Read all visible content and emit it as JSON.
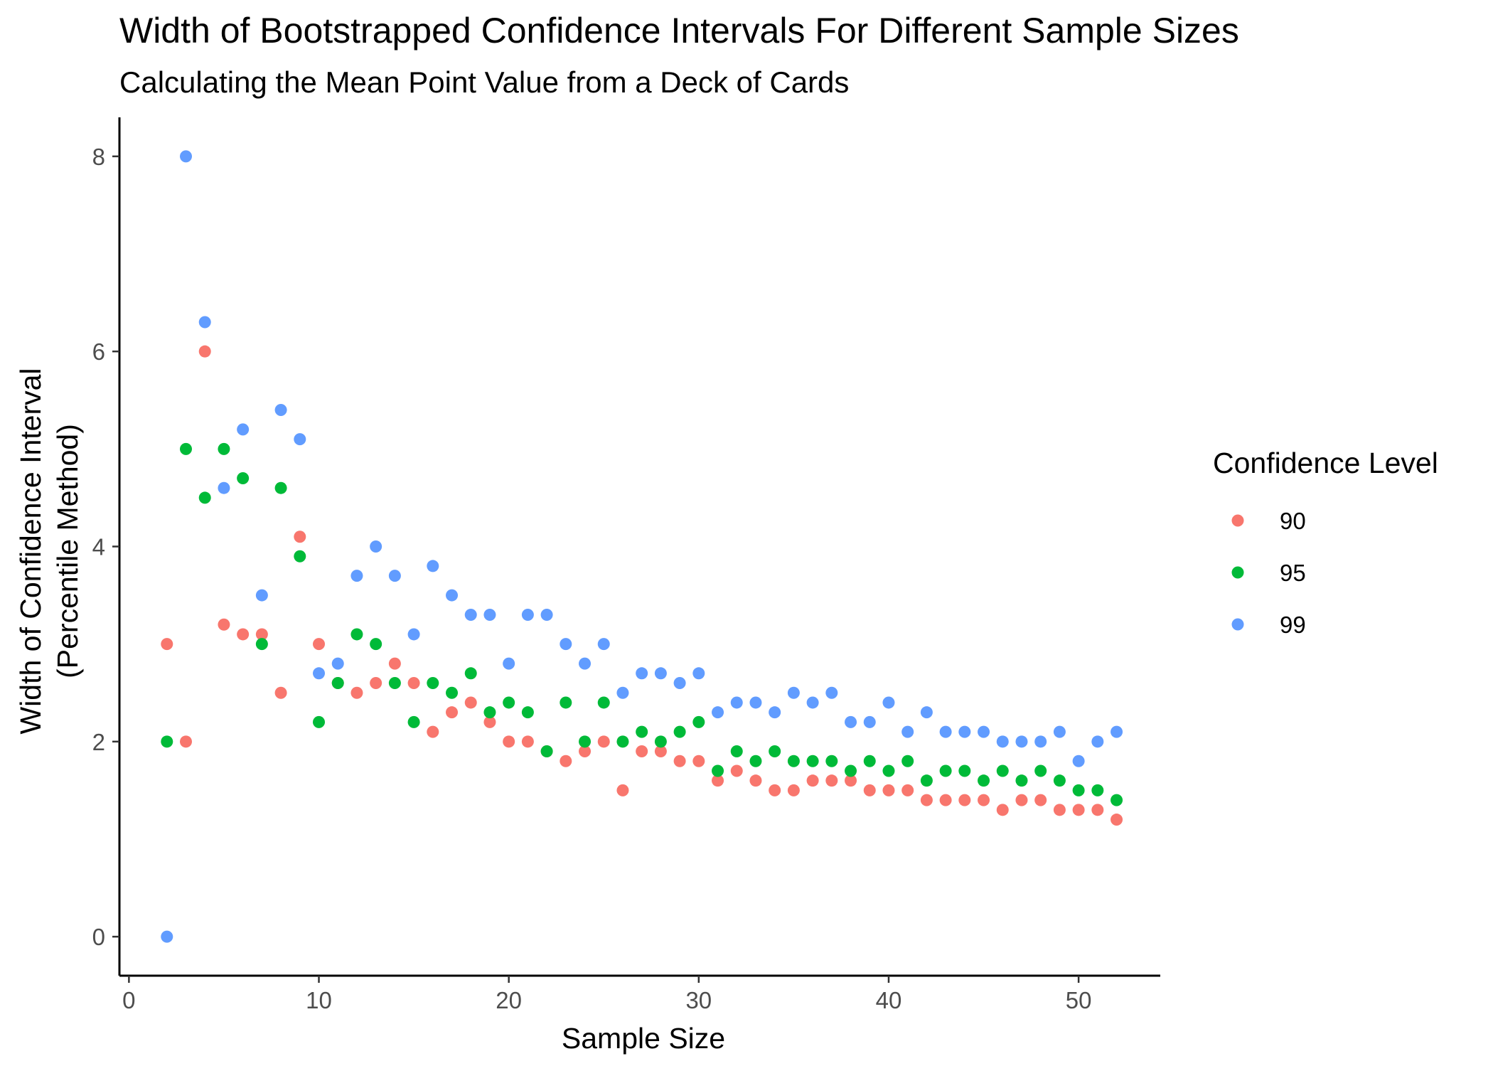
{
  "chart_data": {
    "type": "scatter",
    "title": "Width of Bootstrapped Confidence Intervals For Different Sample Sizes",
    "subtitle": "Calculating the Mean Point Value from a Deck of Cards",
    "xlabel": "Sample Size",
    "ylabel_lines": [
      "Width of Confidence Interval",
      "(Percentile Method)"
    ],
    "xlim": [
      -0.5,
      54.3
    ],
    "ylim": [
      -0.4,
      8.4
    ],
    "xticks": [
      0,
      10,
      20,
      30,
      40,
      50
    ],
    "yticks": [
      0,
      2,
      4,
      6,
      8
    ],
    "grid": false,
    "legend": {
      "title": "Confidence Level",
      "placement": "right"
    },
    "x": [
      2,
      3,
      4,
      5,
      6,
      7,
      8,
      9,
      10,
      11,
      12,
      13,
      14,
      15,
      16,
      17,
      18,
      19,
      20,
      21,
      22,
      23,
      24,
      25,
      26,
      27,
      28,
      29,
      30,
      31,
      32,
      33,
      34,
      35,
      36,
      37,
      38,
      39,
      40,
      41,
      42,
      43,
      44,
      45,
      46,
      47,
      48,
      49,
      50,
      51,
      52
    ],
    "series": [
      {
        "name": "90",
        "color": "#F8766D",
        "values": [
          3.0,
          2.0,
          6.0,
          3.2,
          3.1,
          3.1,
          2.5,
          4.1,
          3.0,
          2.6,
          2.5,
          2.6,
          2.8,
          2.6,
          2.1,
          2.3,
          2.4,
          2.2,
          2.0,
          2.0,
          1.9,
          1.8,
          1.9,
          2.0,
          1.5,
          1.9,
          1.9,
          1.8,
          1.8,
          1.6,
          1.7,
          1.6,
          1.5,
          1.5,
          1.6,
          1.6,
          1.6,
          1.5,
          1.5,
          1.5,
          1.4,
          1.4,
          1.4,
          1.4,
          1.3,
          1.4,
          1.4,
          1.3,
          1.3,
          1.3,
          1.2
        ]
      },
      {
        "name": "95",
        "color": "#00BA38",
        "values": [
          2.0,
          5.0,
          4.5,
          5.0,
          4.7,
          3.0,
          4.6,
          3.9,
          2.2,
          2.6,
          3.1,
          3.0,
          2.6,
          2.2,
          2.6,
          2.5,
          2.7,
          2.3,
          2.4,
          2.3,
          1.9,
          2.4,
          2.0,
          2.4,
          2.0,
          2.1,
          2.0,
          2.1,
          2.2,
          1.7,
          1.9,
          1.8,
          1.9,
          1.8,
          1.8,
          1.8,
          1.7,
          1.8,
          1.7,
          1.8,
          1.6,
          1.7,
          1.7,
          1.6,
          1.7,
          1.6,
          1.7,
          1.6,
          1.5,
          1.5,
          1.4
        ]
      },
      {
        "name": "99",
        "color": "#619CFF",
        "values": [
          0.0,
          8.0,
          6.3,
          4.6,
          5.2,
          3.5,
          5.4,
          5.1,
          2.7,
          2.8,
          3.7,
          4.0,
          3.7,
          3.1,
          3.8,
          3.5,
          3.3,
          3.3,
          2.8,
          3.3,
          3.3,
          3.0,
          2.8,
          3.0,
          2.5,
          2.7,
          2.7,
          2.6,
          2.7,
          2.3,
          2.4,
          2.4,
          2.3,
          2.5,
          2.4,
          2.5,
          2.2,
          2.2,
          2.4,
          2.1,
          2.3,
          2.1,
          2.1,
          2.1,
          2.0,
          2.0,
          2.0,
          2.1,
          1.8,
          2.0,
          2.1
        ]
      }
    ]
  }
}
